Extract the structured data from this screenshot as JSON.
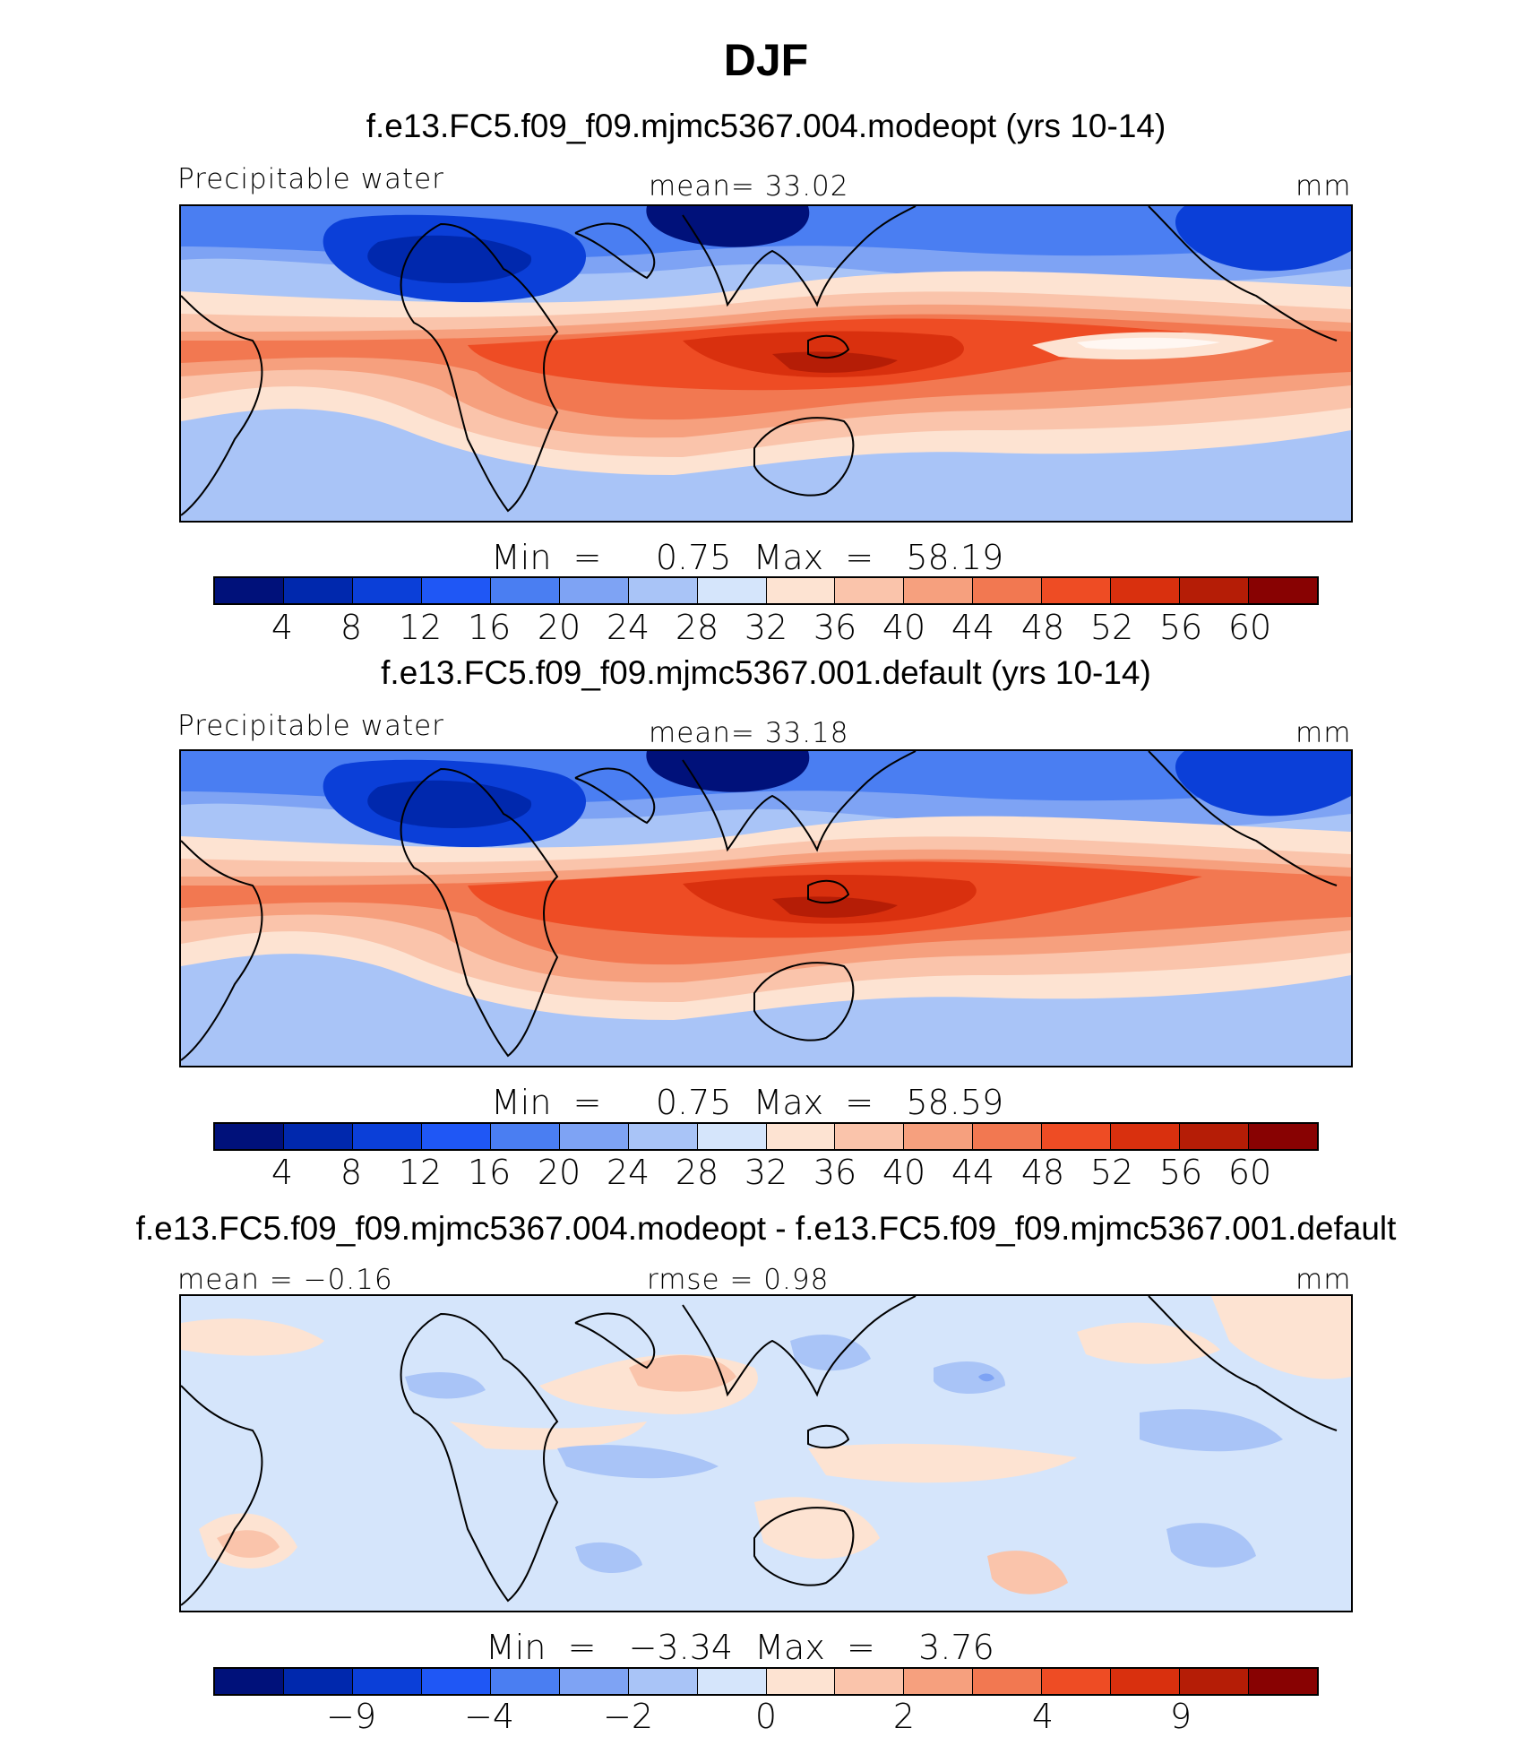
{
  "title": "DJF",
  "panels": [
    {
      "case": "f.e13.FC5.f09_f09.mjmc5367.004.modeopt (yrs 10-14)",
      "left_label": "Precipitable water",
      "center_label": "mean=   33.02",
      "units": "mm",
      "minmax": "Min  =     0.75  Max  =   58.19",
      "colorbar_ticks": [
        "4",
        "8",
        "12",
        "16",
        "20",
        "24",
        "28",
        "32",
        "36",
        "40",
        "44",
        "48",
        "52",
        "56",
        "60"
      ]
    },
    {
      "case": "f.e13.FC5.f09_f09.mjmc5367.001.default (yrs 10-14)",
      "left_label": "Precipitable water",
      "center_label": "mean=   33.18",
      "units": "mm",
      "minmax": "Min  =     0.75  Max  =   58.59",
      "colorbar_ticks": [
        "4",
        "8",
        "12",
        "16",
        "20",
        "24",
        "28",
        "32",
        "36",
        "40",
        "44",
        "48",
        "52",
        "56",
        "60"
      ]
    },
    {
      "case": "f.e13.FC5.f09_f09.mjmc5367.004.modeopt - f.e13.FC5.f09_f09.mjmc5367.001.default",
      "left_label": "mean =   −0.16",
      "center_label": "rmse =    0.98",
      "units": "mm",
      "minmax": "Min  =   −3.34  Max  =    3.76",
      "colorbar_ticks": [
        "−9",
        "−4",
        "−2",
        "0",
        "2",
        "4",
        "9"
      ]
    }
  ],
  "colors": {
    "scale": [
      "#00117a",
      "#0028ad",
      "#0b3fd8",
      "#1f57f5",
      "#4a7ef2",
      "#7ea3f4",
      "#a9c4f7",
      "#d5e5fb",
      "#fde3d2",
      "#fac4ab",
      "#f6a07e",
      "#f27851",
      "#ee4c24",
      "#d9300e",
      "#b51d06",
      "#880202"
    ]
  }
}
